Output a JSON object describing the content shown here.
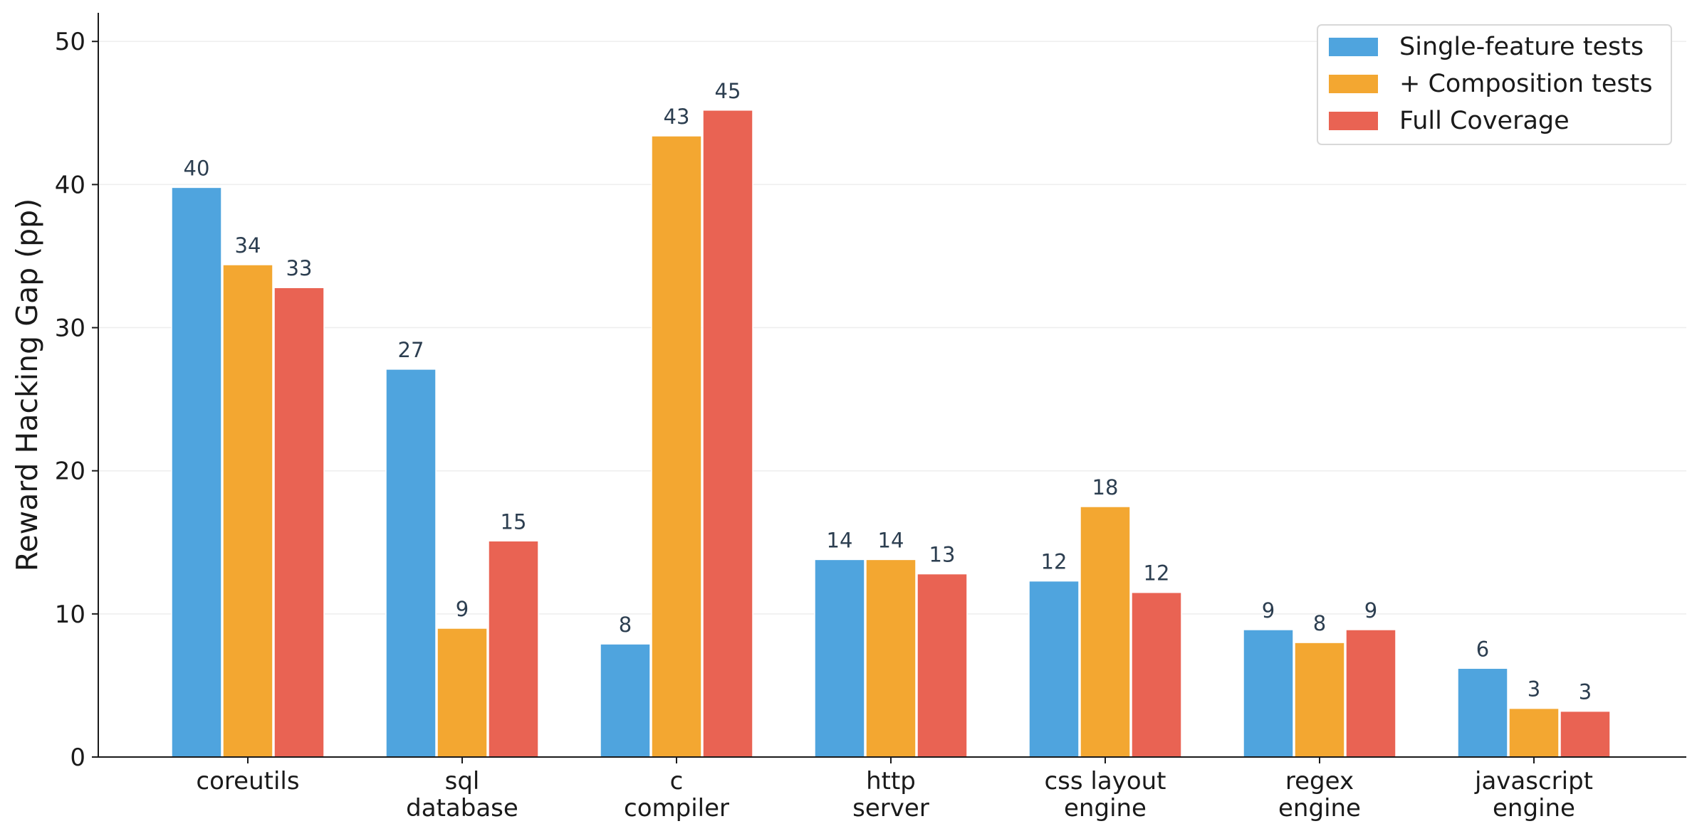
{
  "chart_data": {
    "type": "bar",
    "categories": [
      [
        "coreutils"
      ],
      [
        "sql",
        "database"
      ],
      [
        "c",
        "compiler"
      ],
      [
        "http",
        "server"
      ],
      [
        "css layout",
        "engine"
      ],
      [
        "regex",
        "engine"
      ],
      [
        "javascript",
        "engine"
      ]
    ],
    "series": [
      {
        "name": "Single-feature tests",
        "color": "#4FA4DE",
        "values": [
          39.8,
          27.1,
          7.9,
          13.8,
          12.3,
          8.9,
          6.2
        ],
        "labels": [
          "40",
          "27",
          "8",
          "14",
          "12",
          "9",
          "6"
        ]
      },
      {
        "name": "+ Composition tests",
        "color": "#F3A731",
        "values": [
          34.4,
          9.0,
          43.4,
          13.8,
          17.5,
          8.0,
          3.4
        ],
        "labels": [
          "34",
          "9",
          "43",
          "14",
          "18",
          "8",
          "3"
        ]
      },
      {
        "name": "Full Coverage",
        "color": "#E96353",
        "values": [
          32.8,
          15.1,
          45.2,
          12.8,
          11.5,
          8.9,
          3.2
        ],
        "labels": [
          "33",
          "15",
          "45",
          "13",
          "12",
          "9",
          "3"
        ]
      }
    ],
    "title": "",
    "xlabel": "",
    "ylabel": "Reward Hacking Gap (pp)",
    "ylim": [
      0,
      52
    ],
    "yticks": [
      0,
      10,
      20,
      30,
      40,
      50
    ],
    "grid": "horizontal",
    "legend": "top-right"
  }
}
